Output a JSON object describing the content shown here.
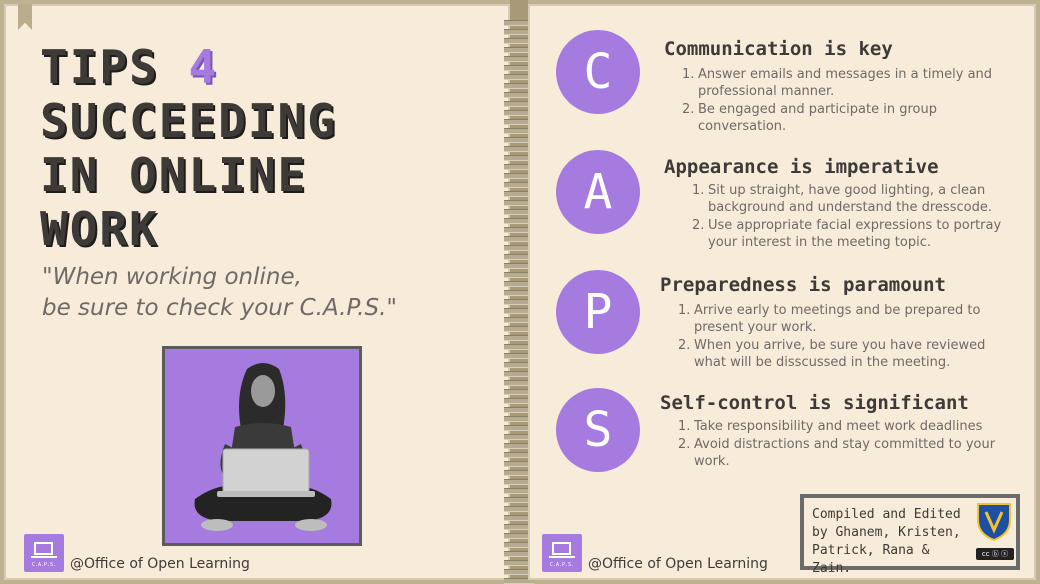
{
  "title": {
    "line1": "TIPS",
    "number": "4",
    "line2": "SUCCEEDING",
    "line3": "IN ONLINE",
    "line4": "WORK"
  },
  "quote": {
    "line1": "\"When working online,",
    "line2": "be sure to check your C.A.P.S.\""
  },
  "credit_left": "@Office of Open Learning",
  "credit_right": "@Office of Open Learning",
  "logo_caption": "C.A.P.S.",
  "sections": [
    {
      "letter": "C",
      "title": "Communication is key",
      "items": [
        {
          "num": "1.",
          "text": "Answer emails and messages in a timely and professional manner."
        },
        {
          "num": "2.",
          "text": "Be engaged and participate in group conversation."
        }
      ]
    },
    {
      "letter": "A",
      "title": "Appearance is imperative",
      "items": [
        {
          "num": "1.",
          "text": "Sit up straight, have good lighting, a clean background and understand the dresscode."
        },
        {
          "num": "2.",
          "text": "Use appropriate facial expressions to portray your interest in the meeting topic."
        }
      ]
    },
    {
      "letter": "P",
      "title": "Preparedness is paramount",
      "items": [
        {
          "num": "1.",
          "text": "Arrive early to meetings and be prepared to present your work."
        },
        {
          "num": "2.",
          "text": "When you arrive, be sure you have reviewed what will be disscussed in the meeting."
        }
      ]
    },
    {
      "letter": "S",
      "title": "Self-control is significant",
      "items": [
        {
          "num": "1.",
          "text": "Take responsibility and meet work deadlines"
        },
        {
          "num": "2.",
          "text": "Avoid distractions and stay committed to your work."
        }
      ]
    }
  ],
  "compiled": {
    "line1": "Compiled and Edited",
    "line2": "by Ghanem, Kristen,",
    "line3": "Patrick, Rana & Zain."
  },
  "colors": {
    "accent": "#a67be0",
    "page": "#f6ecd9",
    "text": "#3e3a37",
    "muted": "#6e6a66"
  }
}
